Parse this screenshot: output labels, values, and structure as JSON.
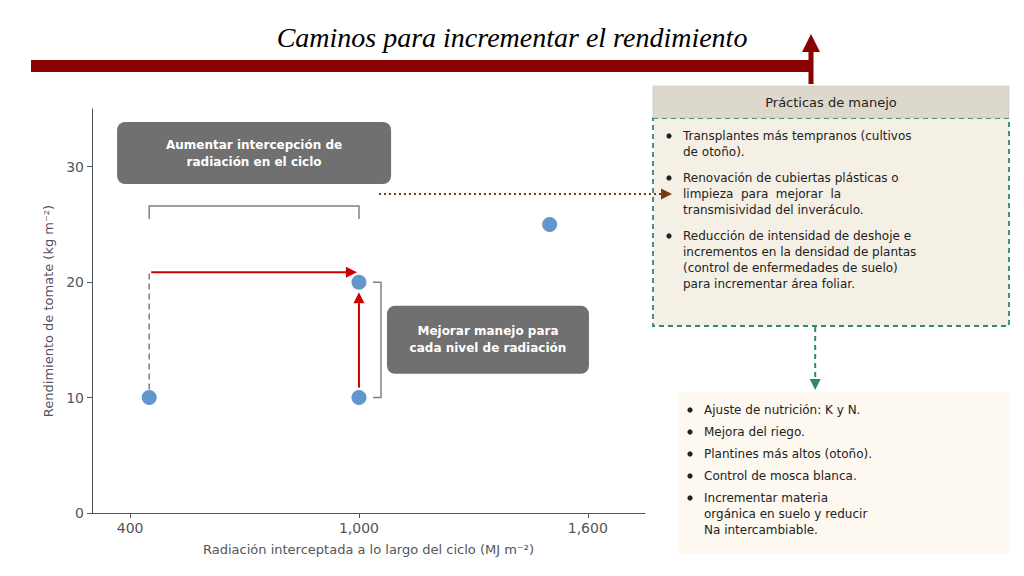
{
  "chart_data": {
    "type": "scatter",
    "title": "Caminos para incrementar el rendimiento",
    "x": [
      450,
      1000,
      1000,
      1500
    ],
    "values": [
      10,
      10,
      20,
      25
    ],
    "color": "#3a7dbf",
    "xlabel": "Radiación interceptada a lo largo del ciclo (MJ m⁻²)",
    "ylabel": "Rendimiento de tomate (kg m⁻²)",
    "xlim": [
      300,
      1750
    ],
    "ylim": [
      0,
      35
    ],
    "xticks": [
      400,
      1000,
      1600
    ],
    "yticks": [
      0,
      10,
      20,
      30
    ],
    "grid": false,
    "annotations": [
      "Aumentar intercepción de\nradiación en el ciclo",
      "Mejorar manejo para\ncada nivel de radiación"
    ],
    "panel_header": "Prácticas de manejo",
    "panel_top": [
      "Transplantes más tempranos (cultivos\nde otoño).",
      "Renovación de cubiertas plásticas o\nlimpieza  para  mejorar  la\ntransmisividad del inveráculo.",
      "Reducción de intensidad de deshoje e\nincrementos en la densidad de plantas\n(control de enfermedades de suelo)\npara incrementar área foliar."
    ],
    "panel_bottom": [
      "Ajuste de nutrición: K y N.",
      "Mejora del riego.",
      "Plantines más altos (otoño).",
      "Control de mosca blanca.",
      "Incrementar materia\norgánica en suelo y reducir\nNa intercambiable."
    ]
  }
}
